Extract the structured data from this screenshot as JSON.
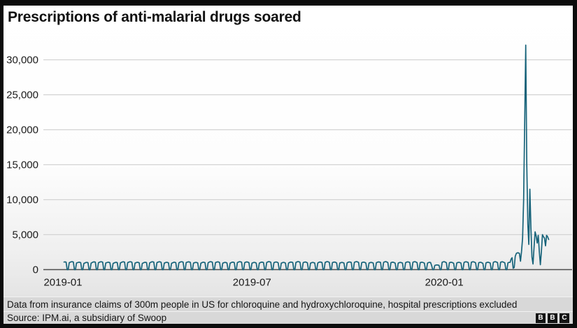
{
  "title": "Prescriptions of anti-malarial drugs soared",
  "footnote": "Data from insurance claims of 300m people in US for chloroquine and hydroxychloroquine, hospital prescriptions excluded",
  "source": "Source: IPM.ai, a subsidiary of Swoop",
  "logo": {
    "letters": [
      "B",
      "B",
      "C"
    ]
  },
  "colors": {
    "line": "#17637a",
    "grid": "#d3d3d3",
    "axis": "#4d4d4d",
    "text": "#1a1a1a",
    "footer_bg": "#d8d8d8"
  },
  "chart_data": {
    "type": "line",
    "title": "Prescriptions of anti-malarial drugs soared",
    "xlabel": "",
    "ylabel": "",
    "grid": "horizontal gridlines only",
    "legend_position": "none",
    "ylim": [
      0,
      32500
    ],
    "x_ticks": [
      {
        "label": "2019-01",
        "day": 0
      },
      {
        "label": "2019-07",
        "day": 181
      },
      {
        "label": "2020-01",
        "day": 365
      }
    ],
    "y_ticks": [
      {
        "label": "0",
        "value": 0
      },
      {
        "label": "5,000",
        "value": 5000
      },
      {
        "label": "10,000",
        "value": 10000
      },
      {
        "label": "15,000",
        "value": 15000
      },
      {
        "label": "20,000",
        "value": 20000
      },
      {
        "label": "25,000",
        "value": 25000
      },
      {
        "label": "30,000",
        "value": 30000
      }
    ],
    "baseline_pattern": {
      "description": "Daily prescriptions Jan 2019 - early Mar 2020: weekdays around 1,000, dropping to about 0 each weekend; slight dip over late-December holidays",
      "start_day": 1,
      "end_day": 428,
      "weekday_value": 1000,
      "weekend_value": 0,
      "variation": 0.14,
      "week_start_dow_of_day0": 2,
      "holiday_dip": {
        "start_day": 353,
        "end_day": 362,
        "factor": 0.6
      }
    },
    "spike_points": [
      [
        429,
        1500
      ],
      [
        430,
        1700
      ],
      [
        431,
        200
      ],
      [
        432,
        300
      ],
      [
        433,
        1900
      ],
      [
        434,
        2300
      ],
      [
        435,
        2400
      ],
      [
        436,
        2400
      ],
      [
        437,
        2300
      ],
      [
        438,
        1200
      ],
      [
        439,
        2600
      ],
      [
        440,
        4500
      ],
      [
        441,
        10000
      ],
      [
        442,
        21000
      ],
      [
        443,
        32100
      ],
      [
        444,
        15000
      ],
      [
        445,
        6500
      ],
      [
        446,
        3600
      ],
      [
        447,
        11500
      ],
      [
        448,
        6000
      ],
      [
        449,
        1800
      ],
      [
        450,
        800
      ],
      [
        451,
        3200
      ],
      [
        452,
        5400
      ],
      [
        453,
        4800
      ],
      [
        454,
        3800
      ],
      [
        455,
        4900
      ],
      [
        456,
        2600
      ],
      [
        457,
        700
      ],
      [
        458,
        2600
      ],
      [
        459,
        5000
      ],
      [
        460,
        4700
      ],
      [
        461,
        4500
      ],
      [
        462,
        3400
      ],
      [
        463,
        4900
      ],
      [
        464,
        4700
      ],
      [
        465,
        4300
      ]
    ],
    "peak": {
      "day": 443,
      "value": 32100
    },
    "secondary_peak": {
      "day": 447,
      "value": 11500
    }
  }
}
